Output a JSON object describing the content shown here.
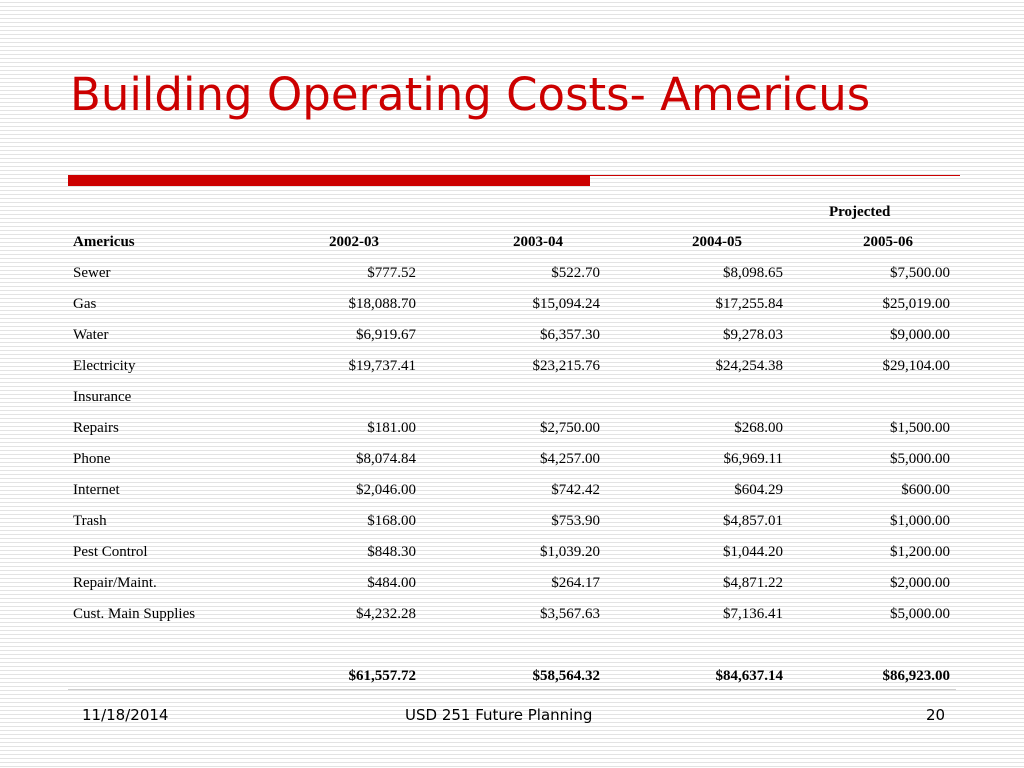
{
  "slide": {
    "title": "Building Operating Costs- Americus",
    "footer": {
      "date": "11/18/2014",
      "center": "USD 251 Future Planning",
      "page": "20"
    }
  },
  "table": {
    "projected_label": "Projected",
    "headers": [
      "Americus",
      "2002-03",
      "2003-04",
      "2004-05",
      "2005-06"
    ],
    "rows": [
      {
        "label": "Sewer",
        "values": [
          "$777.52",
          "$522.70",
          "$8,098.65",
          "$7,500.00"
        ]
      },
      {
        "label": "Gas",
        "values": [
          "$18,088.70",
          "$15,094.24",
          "$17,255.84",
          "$25,019.00"
        ]
      },
      {
        "label": "Water",
        "values": [
          "$6,919.67",
          "$6,357.30",
          "$9,278.03",
          "$9,000.00"
        ]
      },
      {
        "label": "Electricity",
        "values": [
          "$19,737.41",
          "$23,215.76",
          "$24,254.38",
          "$29,104.00"
        ]
      },
      {
        "label": "Insurance",
        "values": [
          "",
          "",
          "",
          ""
        ]
      },
      {
        "label": "Repairs",
        "values": [
          "$181.00",
          "$2,750.00",
          "$268.00",
          "$1,500.00"
        ]
      },
      {
        "label": "Phone",
        "values": [
          "$8,074.84",
          "$4,257.00",
          "$6,969.11",
          "$5,000.00"
        ]
      },
      {
        "label": "Internet",
        "values": [
          "$2,046.00",
          "$742.42",
          "$604.29",
          "$600.00"
        ]
      },
      {
        "label": "Trash",
        "values": [
          "$168.00",
          "$753.90",
          "$4,857.01",
          "$1,000.00"
        ]
      },
      {
        "label": "Pest Control",
        "values": [
          "$848.30",
          "$1,039.20",
          "$1,044.20",
          "$1,200.00"
        ]
      },
      {
        "label": "Repair/Maint.",
        "values": [
          "$484.00",
          "$264.17",
          "$4,871.22",
          "$2,000.00"
        ]
      },
      {
        "label": "Cust. Main Supplies",
        "values": [
          "$4,232.28",
          "$3,567.63",
          "$7,136.41",
          "$5,000.00"
        ]
      }
    ],
    "totals": [
      "$61,557.72",
      "$58,564.32",
      "$84,637.14",
      "$86,923.00"
    ]
  },
  "colors": {
    "accent": "#cc0000"
  }
}
